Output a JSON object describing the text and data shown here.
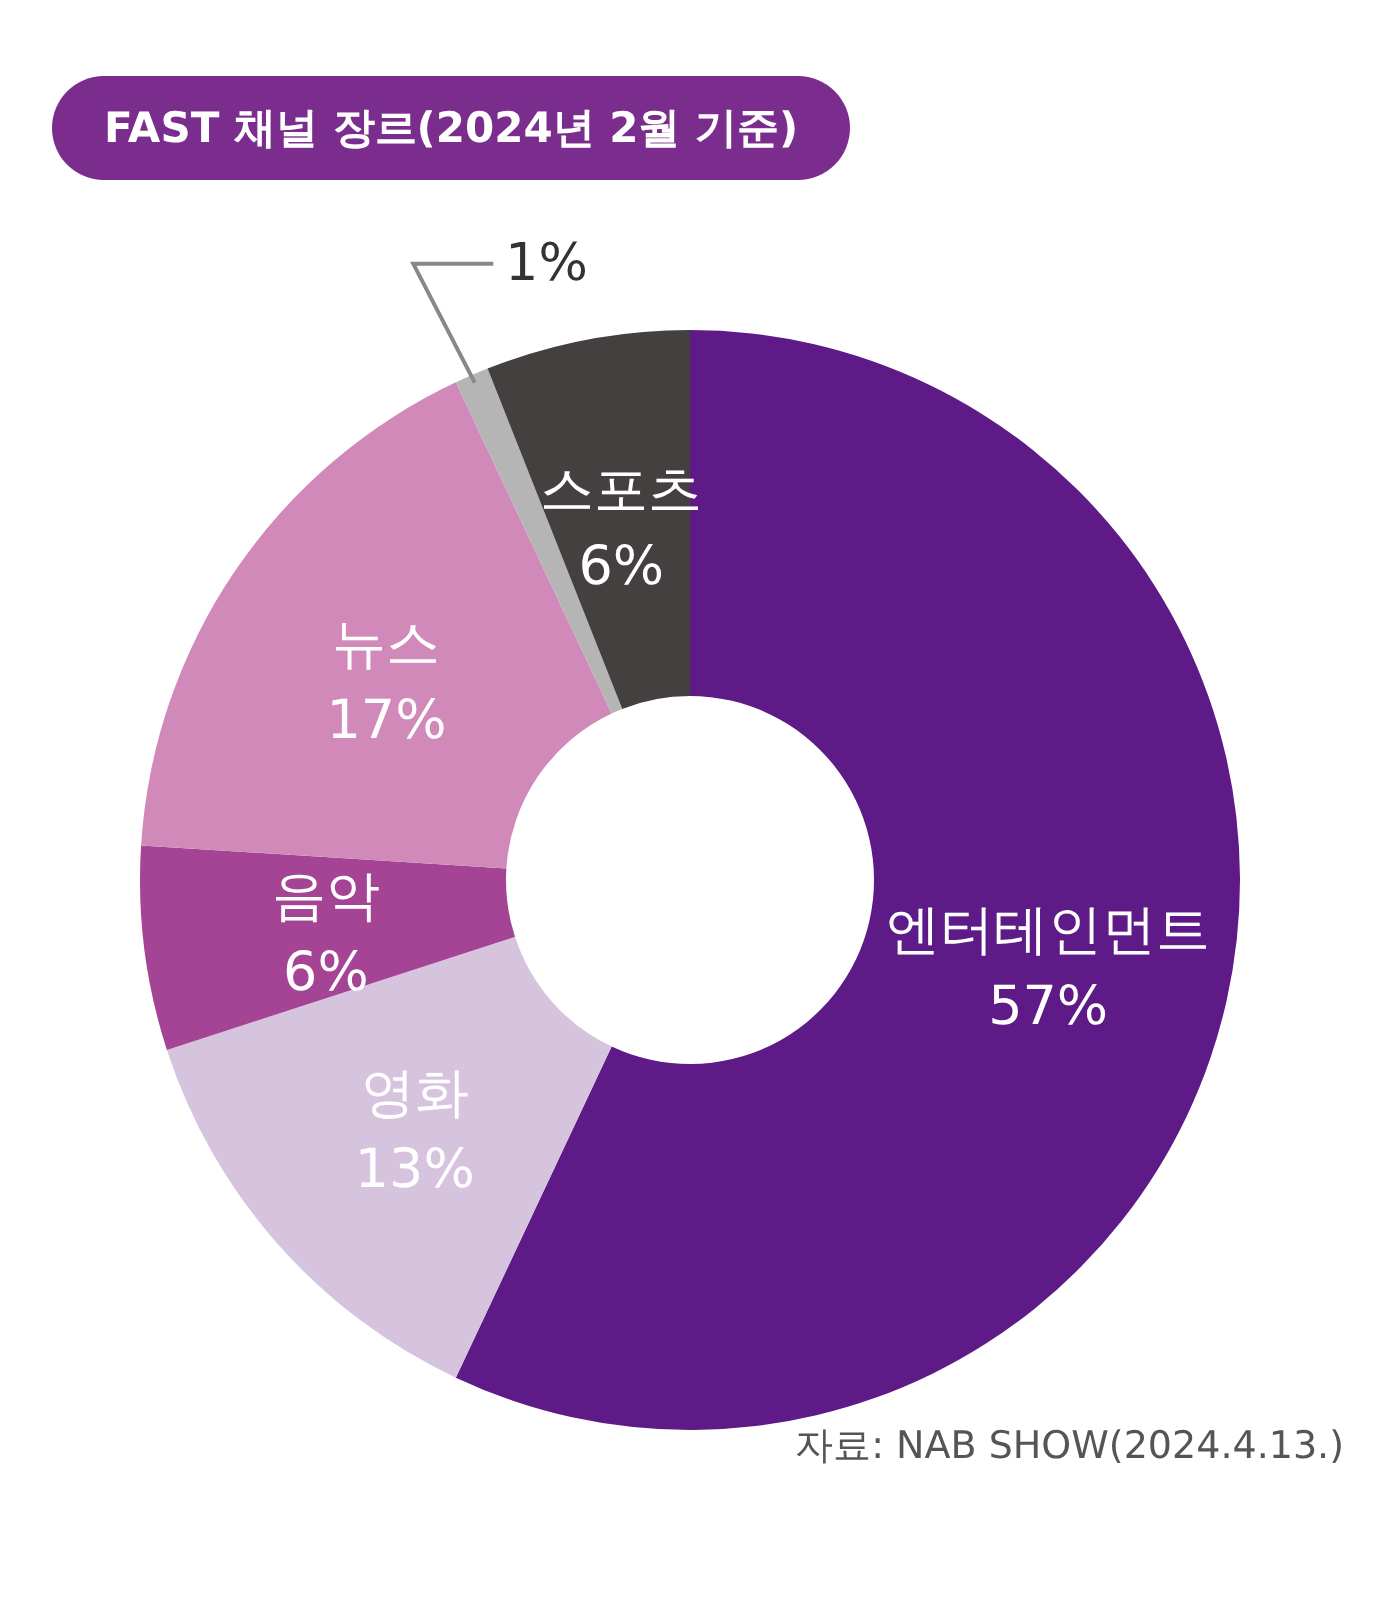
{
  "chart_data": {
    "type": "donut",
    "title": "FAST 채널 장르(2024년 2월 기준)",
    "categories": [
      "엔터테인먼트",
      "영화",
      "음악",
      "뉴스",
      null,
      "스포츠"
    ],
    "values": [
      57,
      13,
      6,
      17,
      1,
      6
    ],
    "colors": [
      "#5e1a87",
      "#d6c3de",
      "#a54394",
      "#d189b9",
      "#b5b5b5",
      "#454040"
    ],
    "value_labels": [
      "57%",
      "13%",
      "6%",
      "17%",
      "1%",
      "6%"
    ],
    "annotations": [
      "자료: NAB SHOW(2024.4.13.)"
    ]
  }
}
